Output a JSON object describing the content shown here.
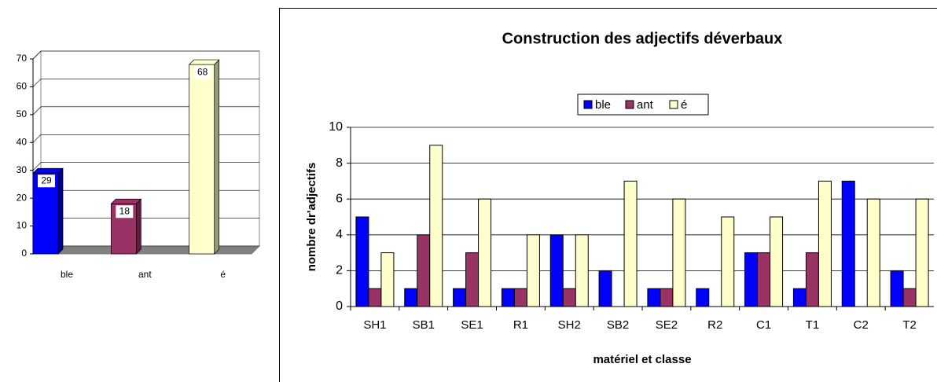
{
  "chart_data": [
    {
      "type": "bar3d",
      "categories": [
        "ble",
        "ant",
        "é"
      ],
      "values": [
        29,
        18,
        68
      ],
      "colors": [
        "#0000ff",
        "#993366",
        "#ffffcc"
      ],
      "ylim": [
        0,
        70
      ],
      "yticks": [
        0,
        10,
        20,
        30,
        40,
        50,
        60,
        70
      ],
      "grid": true
    },
    {
      "type": "bar",
      "title": "Construction des adjectifs déverbaux",
      "xlabel": "matériel et classe",
      "ylabel": "nombre dr'adjectifs",
      "categories": [
        "SH1",
        "SB1",
        "SE1",
        "R1",
        "SH2",
        "SB2",
        "SE2",
        "R2",
        "C1",
        "T1",
        "C2",
        "T2"
      ],
      "series": [
        {
          "name": "ble",
          "color": "#0000ff",
          "values": [
            5,
            1,
            1,
            1,
            4,
            2,
            1,
            1,
            3,
            1,
            7,
            2
          ]
        },
        {
          "name": "ant",
          "color": "#993366",
          "values": [
            1,
            4,
            3,
            1,
            1,
            0,
            1,
            0,
            3,
            3,
            0,
            1
          ]
        },
        {
          "name": "é",
          "color": "#ffffcc",
          "values": [
            3,
            9,
            6,
            4,
            4,
            7,
            6,
            5,
            5,
            7,
            6,
            6
          ]
        }
      ],
      "ylim": [
        0,
        10
      ],
      "yticks": [
        0,
        2,
        4,
        6,
        8,
        10
      ],
      "grid": true,
      "legend": "top"
    }
  ]
}
